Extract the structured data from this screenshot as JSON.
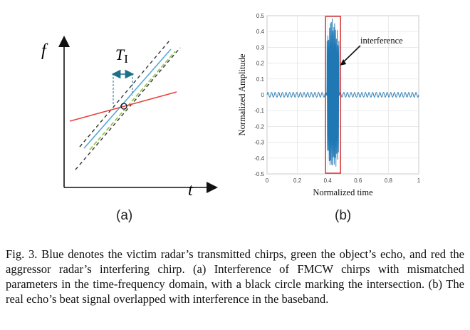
{
  "figure": {
    "panel_a": {
      "y_axis_label": "f",
      "x_axis_label": "t",
      "interval_label_main": "T",
      "interval_label_sub": "I",
      "sublabel": "(a)",
      "colors": {
        "victim_chirp": "#5aa9d6",
        "echo_chirp": "#8fbf4a",
        "aggressor_chirp": "#e8413c",
        "bounds": "#333333",
        "interval_marker": "#1f6f8b"
      }
    },
    "panel_b": {
      "sublabel": "(b)",
      "annotation": "interference",
      "chart_data": {
        "type": "line",
        "xlabel": "Normalized time",
        "ylabel": "Normalized Amplitude",
        "xlim": [
          0,
          1
        ],
        "ylim": [
          -0.5,
          0.5
        ],
        "x_ticks": [
          "0",
          "0.2",
          "0.4",
          "0.6",
          "0.8",
          "1"
        ],
        "y_ticks": [
          "0.5",
          "0.4",
          "0.3",
          "0.2",
          "0.1",
          "0",
          "-0.1",
          "-0.2",
          "-0.3",
          "-0.4",
          "-0.5"
        ],
        "grid": true,
        "series_color": "#1f77b4",
        "highlight_color": "#d62728",
        "baseline_amplitude": 0.015,
        "baseline_cycles": 42,
        "interference_range": [
          0.395,
          0.475
        ],
        "interference_peak": 0.5
      }
    }
  },
  "caption": {
    "text": "Fig. 3.  Blue denotes the victim radar’s transmitted chirps, green the object’s echo, and red the aggressor radar’s interfering chirp. (a) Interference of FMCW chirps with mismatched parameters in the time-frequency domain, with a black circle marking the intersection. (b) The real echo’s beat signal overlapped with interference in the baseband."
  }
}
